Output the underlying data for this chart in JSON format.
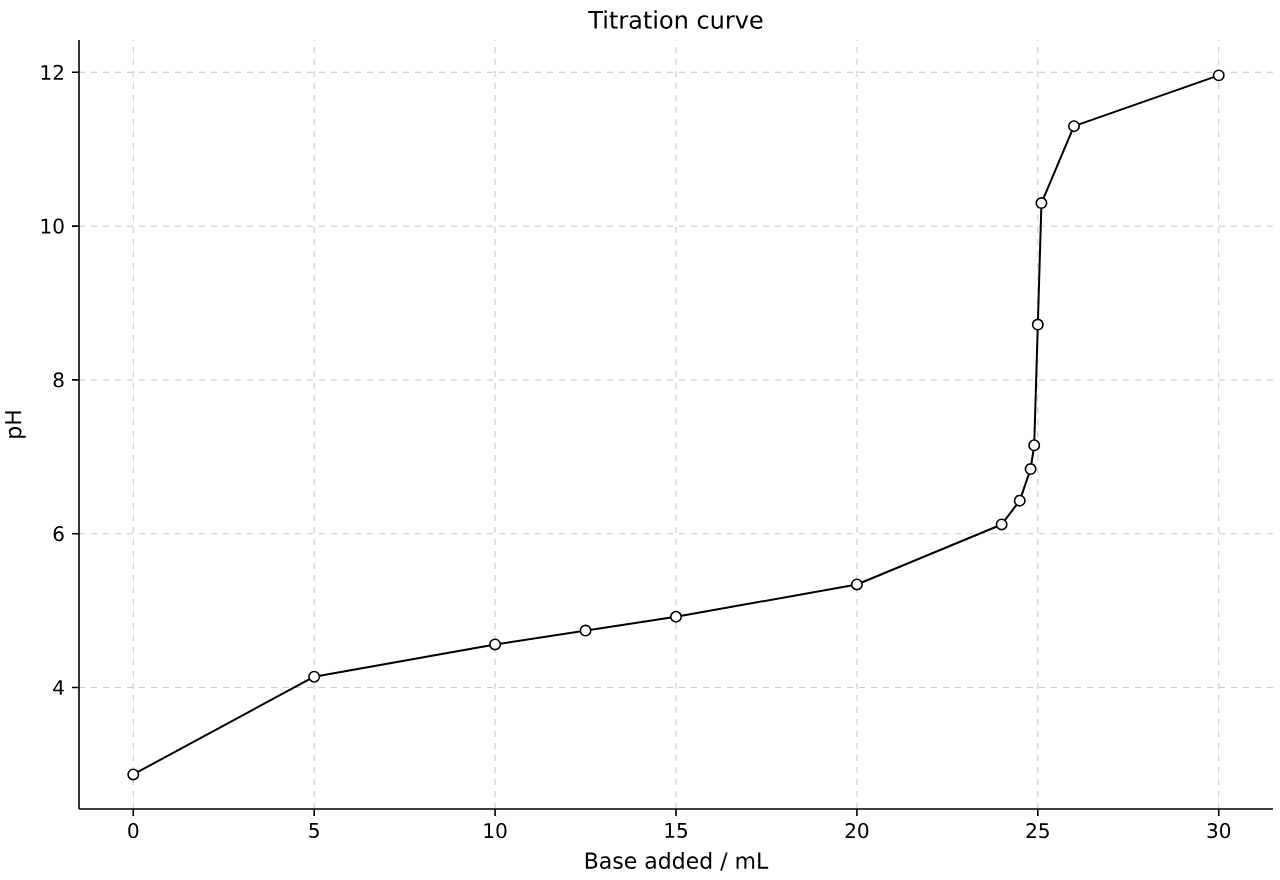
{
  "chart_data": {
    "type": "line",
    "title": "Titration curve",
    "xlabel": "Base added / mL",
    "ylabel": "pH",
    "x": [
      0,
      5,
      10,
      12.5,
      15,
      20,
      24,
      24.5,
      24.8,
      24.9,
      25,
      25.1,
      26,
      30
    ],
    "values": [
      2.87,
      4.14,
      4.56,
      4.74,
      4.92,
      5.34,
      6.12,
      6.43,
      6.84,
      7.15,
      8.72,
      10.3,
      11.3,
      11.96
    ],
    "color": "#000000",
    "marker": "circle",
    "line_style": "solid",
    "grid": true,
    "xlim": [
      -1.5,
      31.5
    ],
    "ylim": [
      2.42,
      12.42
    ],
    "xticks": [
      0,
      5,
      10,
      15,
      20,
      25,
      30
    ],
    "yticks": [
      4,
      6,
      8,
      10,
      12
    ]
  }
}
